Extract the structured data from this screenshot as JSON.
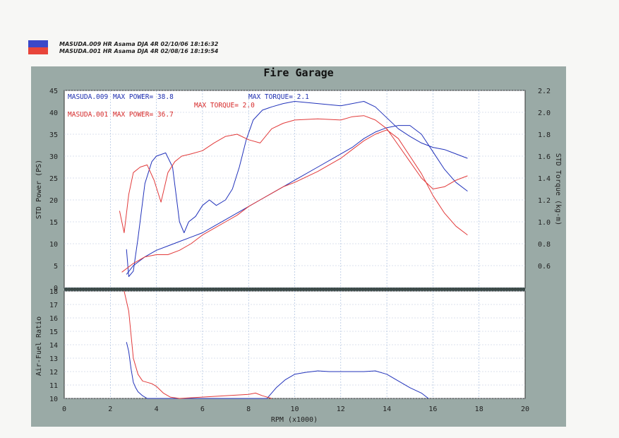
{
  "header": {
    "swatch_colors": [
      "#3b48c8",
      "#e8453a"
    ],
    "run_lines": [
      "MASUDA.009  HR Asama  DJA 4R  02/10/06 18:16:32",
      "MASUDA.001  HR Asama  DJA 4R  02/08/16 18:19:54"
    ]
  },
  "chart_data": {
    "type": "line",
    "title": "Fire Garage",
    "xlabel": "RPM (x1000)",
    "x_ticks": [
      "0",
      "2",
      "4",
      "6",
      "8",
      "10",
      "12",
      "14",
      "16",
      "18",
      "20"
    ],
    "xlim": [
      0,
      20
    ],
    "panel_background": "#9aaaa6",
    "plot_background": "#ffffff",
    "grid": true,
    "top_panel": {
      "ylabel_left": "STD Power (PS)",
      "ylabel_right": "STD Torque (kg-m)",
      "ylim_left": [
        0,
        45
      ],
      "y_ticks_left": [
        "0",
        "5",
        "10",
        "15",
        "20",
        "25",
        "30",
        "35",
        "40",
        "45"
      ],
      "ylim_right": [
        0.4,
        2.2
      ],
      "y_ticks_right": [
        "0.6",
        "0.8",
        "1.0",
        "1.2",
        "1.4",
        "1.6",
        "1.8",
        "2.0",
        "2.2"
      ],
      "annotations": [
        {
          "text": "MASUDA.009",
          "color": "#1f2fb0"
        },
        {
          "text": "MAX POWER= 38.8",
          "color": "#1f2fb0"
        },
        {
          "text": "MAX TORQUE= 2.1",
          "color": "#1f2fb0"
        },
        {
          "text": "MASUDA.001",
          "color": "#d62a2a"
        },
        {
          "text": "MAX POWER= 36.7",
          "color": "#d62a2a"
        },
        {
          "text": "MAX TORQUE= 2.0",
          "color": "#d62a2a"
        }
      ],
      "series": [
        {
          "name": "MASUDA.009",
          "kind": "power",
          "axis": "left",
          "color": "#2233bb",
          "x": [
            2.7,
            3.0,
            3.5,
            4.0,
            4.5,
            5.0,
            5.5,
            6.0,
            6.5,
            7.0,
            7.5,
            8.0,
            8.5,
            9.0,
            9.5,
            10.0,
            11.0,
            12.0,
            12.5,
            13.0,
            13.5,
            14.0,
            14.5,
            15.0,
            15.5,
            16.0,
            16.5,
            17.0,
            17.5
          ],
          "y": [
            3,
            5,
            7,
            8.5,
            9.5,
            10.5,
            11.5,
            12.5,
            14,
            15.5,
            17,
            18.5,
            20,
            21.5,
            23,
            24.5,
            27.5,
            30.5,
            32,
            34,
            35.5,
            36.5,
            37,
            37,
            35,
            31,
            27,
            24,
            22
          ]
        },
        {
          "name": "MASUDA.009",
          "kind": "torque",
          "axis": "right",
          "color": "#2233bb",
          "x": [
            2.7,
            2.8,
            3.0,
            3.2,
            3.5,
            3.8,
            4.0,
            4.4,
            4.7,
            5.0,
            5.2,
            5.4,
            5.7,
            6.0,
            6.3,
            6.6,
            7.0,
            7.3,
            7.6,
            7.9,
            8.2,
            8.6,
            9.0,
            9.5,
            10.0,
            11.0,
            12.0,
            13.0,
            13.5,
            14.0,
            14.5,
            15.0,
            15.5,
            16.0,
            16.5,
            17.0,
            17.5
          ],
          "y": [
            0.75,
            0.5,
            0.55,
            0.85,
            1.35,
            1.55,
            1.6,
            1.63,
            1.5,
            1.0,
            0.9,
            1.0,
            1.05,
            1.15,
            1.2,
            1.15,
            1.2,
            1.3,
            1.5,
            1.75,
            1.93,
            2.02,
            2.05,
            2.08,
            2.1,
            2.08,
            2.06,
            2.1,
            2.05,
            1.95,
            1.85,
            1.78,
            1.72,
            1.68,
            1.66,
            1.62,
            1.58
          ]
        },
        {
          "name": "MASUDA.001",
          "kind": "power",
          "axis": "left",
          "color": "#e23a3a",
          "x": [
            2.5,
            3.0,
            3.5,
            4.0,
            4.5,
            5.0,
            5.5,
            6.0,
            6.5,
            7.0,
            7.5,
            8.0,
            8.5,
            9.0,
            9.5,
            10.0,
            11.0,
            12.0,
            12.5,
            13.0,
            13.5,
            14.0,
            14.5,
            15.0,
            15.5,
            16.0,
            16.5,
            17.0,
            17.5
          ],
          "y": [
            3.5,
            5.5,
            7,
            7.5,
            7.5,
            8.5,
            10,
            12,
            13.5,
            15,
            16.5,
            18.5,
            20,
            21.5,
            23,
            24,
            26.5,
            29.5,
            31.5,
            33.5,
            35,
            36,
            34,
            30,
            26,
            21,
            17,
            14,
            12
          ]
        },
        {
          "name": "MASUDA.001",
          "kind": "torque",
          "axis": "right",
          "color": "#e23a3a",
          "x": [
            2.4,
            2.6,
            2.8,
            3.0,
            3.3,
            3.6,
            3.9,
            4.2,
            4.5,
            4.8,
            5.1,
            5.5,
            6.0,
            6.5,
            7.0,
            7.5,
            8.0,
            8.5,
            9.0,
            9.5,
            10.0,
            11.0,
            12.0,
            12.5,
            13.0,
            13.5,
            14.0,
            14.5,
            15.0,
            15.5,
            16.0,
            16.5,
            17.0,
            17.5
          ],
          "y": [
            1.1,
            0.9,
            1.25,
            1.45,
            1.5,
            1.52,
            1.38,
            1.18,
            1.45,
            1.55,
            1.6,
            1.62,
            1.65,
            1.72,
            1.78,
            1.8,
            1.75,
            1.72,
            1.85,
            1.9,
            1.93,
            1.94,
            1.93,
            1.96,
            1.97,
            1.93,
            1.85,
            1.7,
            1.55,
            1.4,
            1.3,
            1.32,
            1.38,
            1.42
          ]
        }
      ]
    },
    "bottom_panel": {
      "ylabel": "Air-Fuel Ratio",
      "ylim": [
        10,
        18
      ],
      "y_ticks": [
        "10",
        "11",
        "12",
        "13",
        "14",
        "15",
        "16",
        "17",
        "18"
      ],
      "series": [
        {
          "name": "MASUDA.009",
          "color": "#2233bb",
          "x": [
            2.7,
            2.8,
            2.9,
            3.0,
            3.1,
            3.2,
            3.4,
            3.6,
            8.8,
            9.2,
            9.6,
            10.0,
            10.5,
            11.0,
            11.5,
            12.0,
            13.0,
            13.5,
            14.0,
            14.5,
            15.0,
            15.5,
            15.8
          ],
          "y": [
            14.2,
            13.5,
            12.2,
            11.2,
            10.8,
            10.5,
            10.2,
            10.0,
            10.0,
            10.8,
            11.4,
            11.8,
            11.95,
            12.05,
            12.0,
            12.0,
            12.0,
            12.05,
            11.8,
            11.3,
            10.8,
            10.4,
            10.0
          ]
        },
        {
          "name": "MASUDA.001",
          "color": "#e23a3a",
          "x": [
            2.6,
            2.8,
            3.0,
            3.2,
            3.4,
            3.6,
            3.8,
            4.0,
            4.3,
            4.6,
            5.0,
            8.0,
            8.3,
            8.6,
            9.0
          ],
          "y": [
            18.0,
            16.5,
            13.0,
            11.8,
            11.3,
            11.2,
            11.1,
            10.9,
            10.4,
            10.1,
            10.0,
            10.3,
            10.4,
            10.2,
            10.0
          ]
        }
      ]
    }
  }
}
